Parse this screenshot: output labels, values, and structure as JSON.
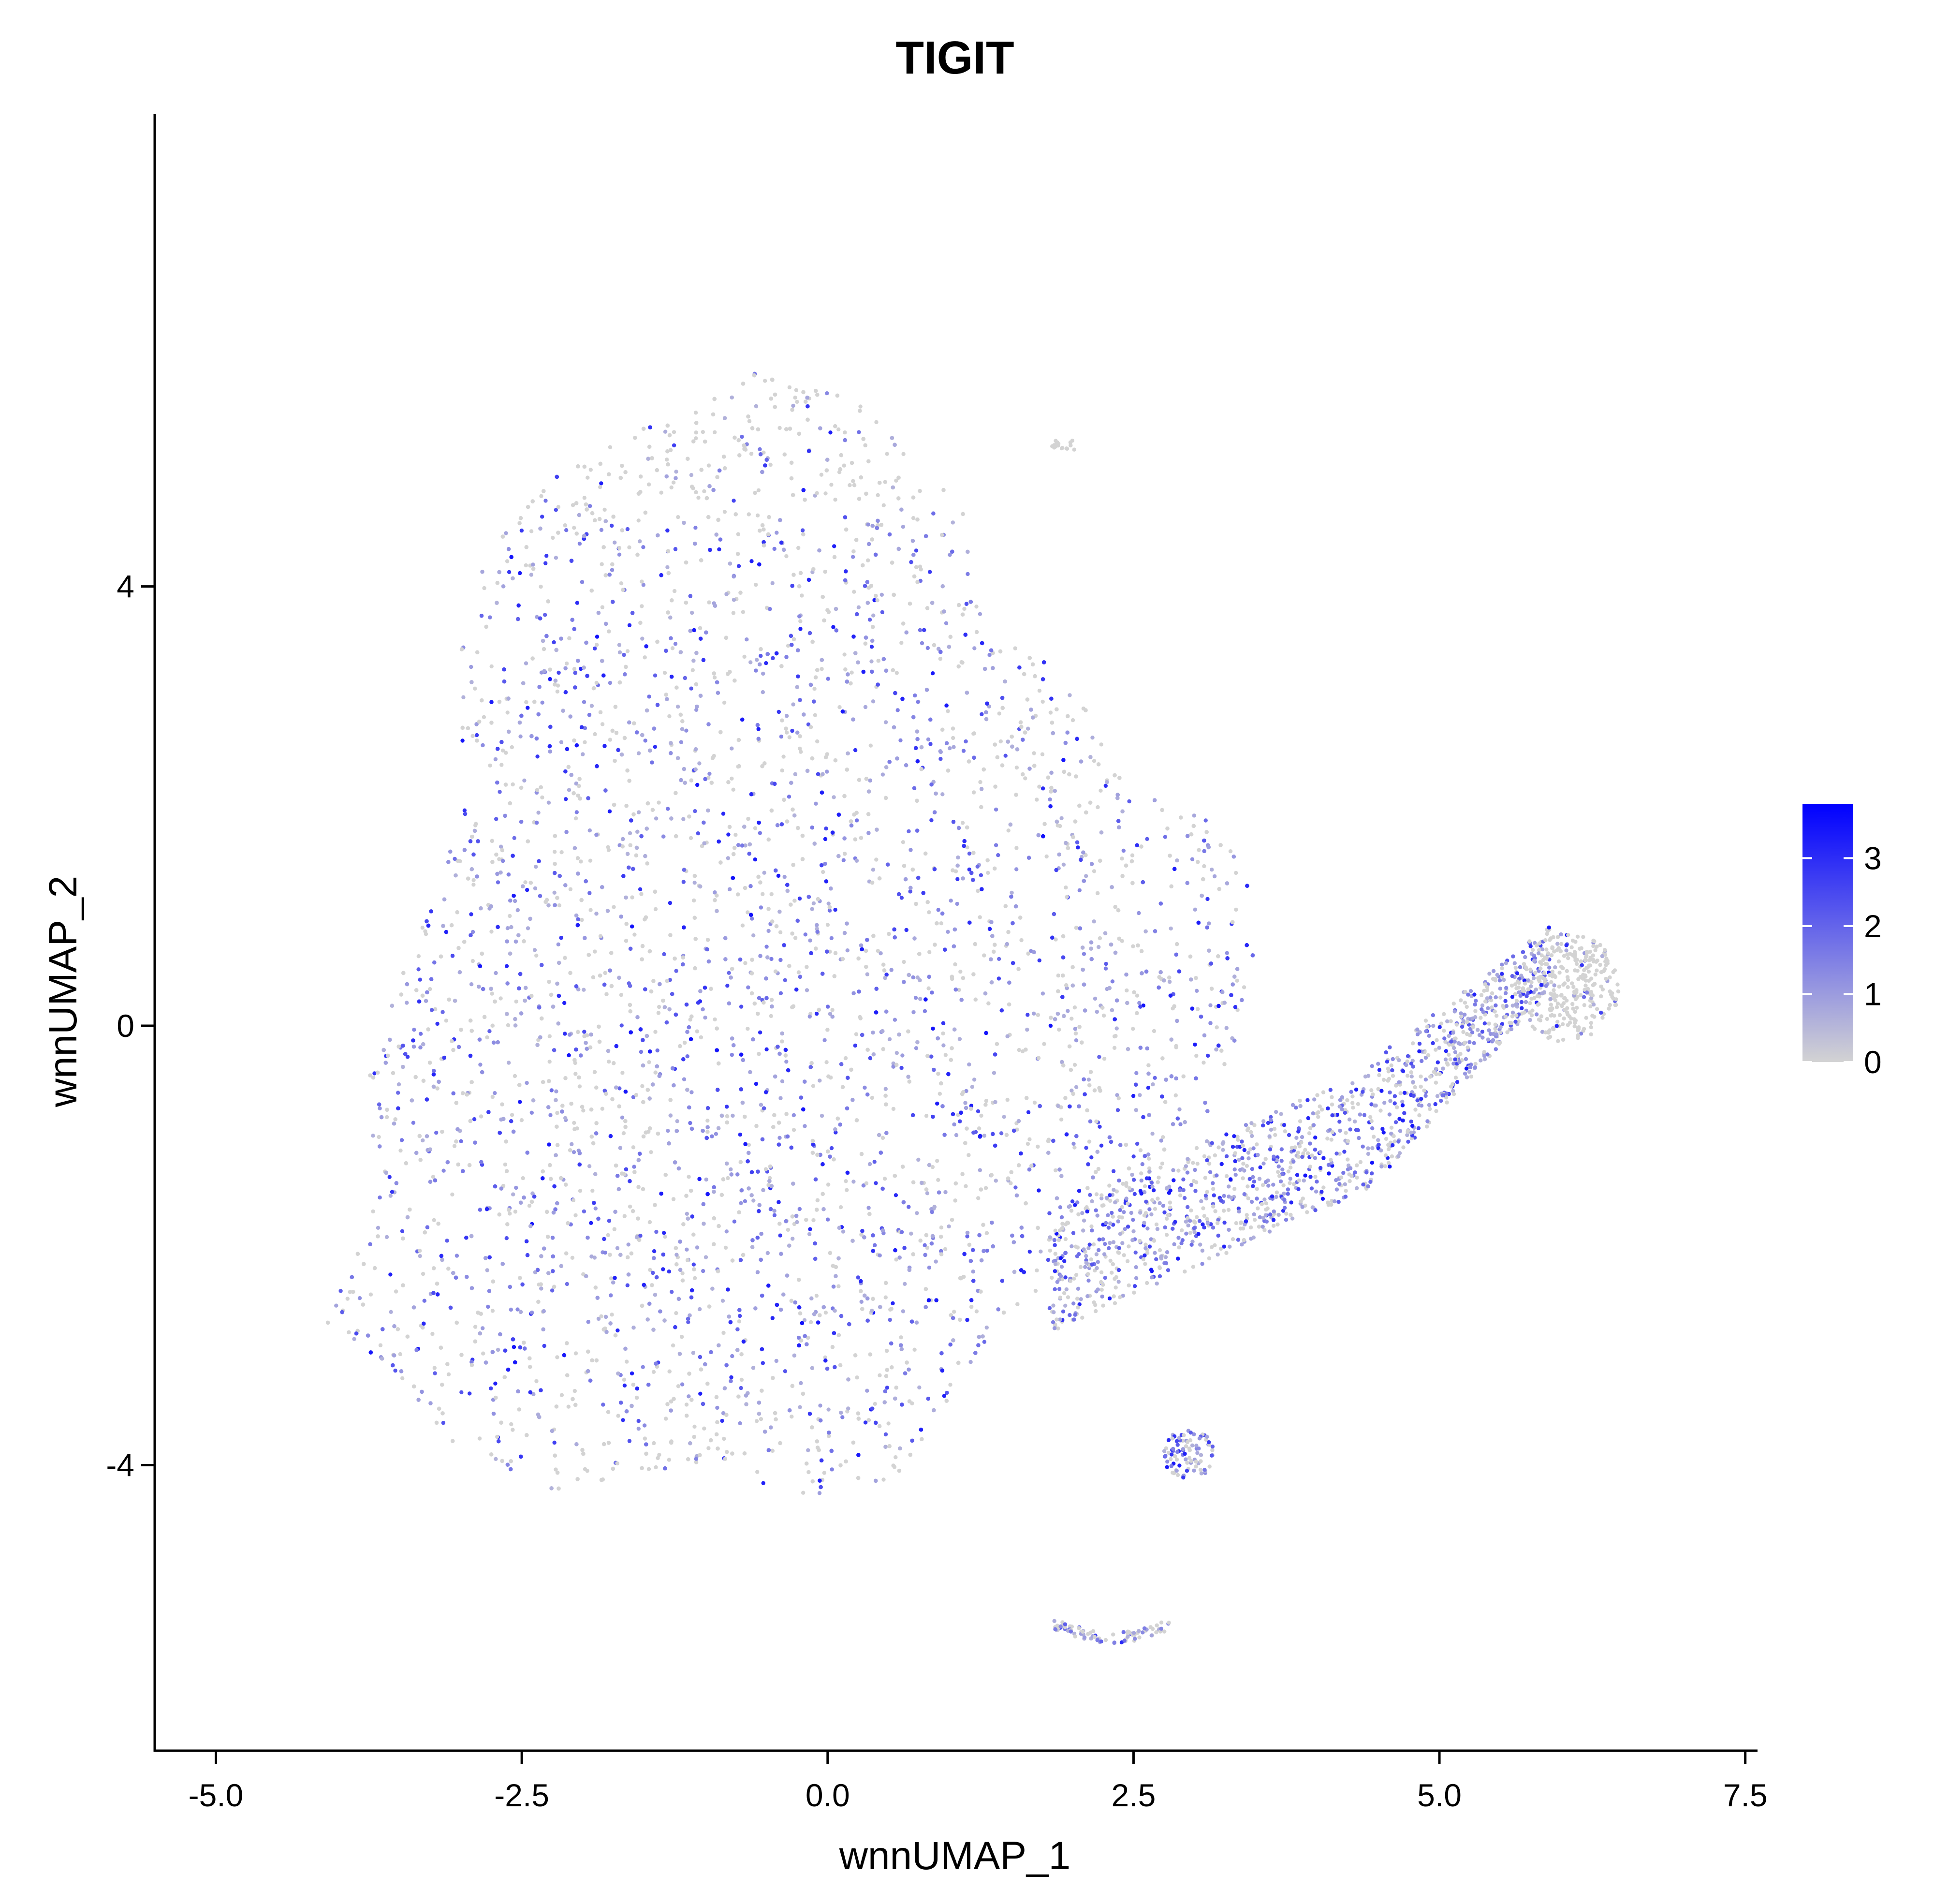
{
  "chart_data": {
    "type": "scatter",
    "title": "TIGIT",
    "xlabel": "wnnUMAP_1",
    "ylabel": "wnnUMAP_2",
    "xlim": [
      -5.5,
      7.6
    ],
    "ylim": [
      -6.6,
      8.3
    ],
    "x_ticks": [
      -5.0,
      -2.5,
      0.0,
      2.5,
      5.0,
      7.5
    ],
    "x_tick_labels": [
      "-5.0",
      "-2.5",
      "0.0",
      "2.5",
      "5.0",
      "7.5"
    ],
    "y_ticks": [
      -4,
      0,
      4
    ],
    "y_tick_labels": [
      "-4",
      "0",
      "4"
    ],
    "grid": false,
    "legend": {
      "type": "colorbar",
      "placement": "right",
      "title": "",
      "ticks": [
        0,
        1,
        2,
        3
      ],
      "tick_labels": [
        "0",
        "1",
        "2",
        "3"
      ],
      "range": [
        0,
        3.8
      ],
      "low_color": "#d3d3d3",
      "high_color": "#0000ff"
    },
    "points_note_regions": [
      {
        "name": "main",
        "x_range": [
          -4.1,
          3.5
        ],
        "y_range": [
          -4.4,
          6.2
        ]
      },
      {
        "name": "right-arm",
        "x_range": [
          1.5,
          6.5
        ],
        "y_range": [
          -3.2,
          1.2
        ]
      },
      {
        "name": "tip",
        "x_range": [
          5.5,
          6.5
        ],
        "y_range": [
          -0.1,
          1.2
        ]
      },
      {
        "name": "small-3",
        "x_range": [
          2.7,
          3.1
        ],
        "y_range": [
          -4.2,
          -3.7
        ]
      },
      {
        "name": "bottom-arc",
        "x_range": [
          1.8,
          2.8
        ],
        "y_range": [
          -5.6,
          -5.3
        ]
      },
      {
        "name": "top-right",
        "x_range": [
          1.8,
          2.0
        ],
        "y_range": [
          5.2,
          5.4
        ]
      }
    ]
  }
}
